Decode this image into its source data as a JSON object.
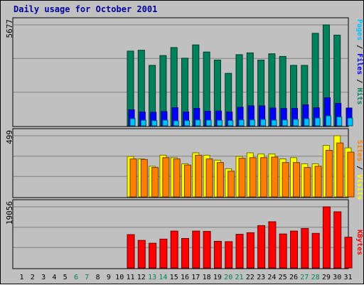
{
  "title": "Daily usage for October 2001",
  "colors": {
    "background": "#c0c0c0",
    "hits": "#00805c",
    "files": "#0000ff",
    "pages": "#00c0ff",
    "visits": "#ffff00",
    "sites": "#ff8000",
    "kbytes": "#ff0000",
    "weekend_label": "#00805c",
    "weekday_label": "#000000"
  },
  "legends": {
    "top": [
      {
        "text": "Pages",
        "color": "#00c0ff"
      },
      {
        "text": " / ",
        "color": "#000000"
      },
      {
        "text": "Files",
        "color": "#0000ff"
      },
      {
        "text": " / ",
        "color": "#000000"
      },
      {
        "text": "Hits",
        "color": "#00805c"
      }
    ],
    "middle": [
      {
        "text": "Sites",
        "color": "#ff8000"
      },
      {
        "text": " / ",
        "color": "#000000"
      },
      {
        "text": "Visits",
        "color": "#ffff00"
      }
    ],
    "bottom": [
      {
        "text": "KBytes",
        "color": "#ff0000"
      }
    ]
  },
  "chart_data": [
    {
      "type": "bar",
      "panel": "hits-files-pages",
      "categories": [
        "1",
        "2",
        "3",
        "4",
        "5",
        "6",
        "7",
        "8",
        "9",
        "10",
        "11",
        "12",
        "13",
        "14",
        "15",
        "16",
        "17",
        "18",
        "19",
        "20",
        "21",
        "22",
        "23",
        "24",
        "25",
        "26",
        "27",
        "28",
        "29",
        "30",
        "31"
      ],
      "weekend_days": [
        "6",
        "7",
        "13",
        "14",
        "20",
        "21",
        "27",
        "28"
      ],
      "ymax_label": "5677",
      "ylim": [
        0,
        5677
      ],
      "grid": true,
      "series": [
        {
          "name": "Hits",
          "values": [
            0,
            0,
            0,
            0,
            0,
            0,
            0,
            0,
            0,
            0,
            4200,
            4250,
            3400,
            3950,
            4400,
            3800,
            4550,
            4150,
            3700,
            2950,
            4000,
            4100,
            3700,
            4050,
            3900,
            3400,
            3400,
            5200,
            5677,
            5100,
            0
          ]
        },
        {
          "name": "Files",
          "values": [
            0,
            0,
            0,
            0,
            0,
            0,
            0,
            0,
            0,
            0,
            900,
            780,
            760,
            800,
            1020,
            780,
            980,
            820,
            830,
            780,
            1040,
            1120,
            1120,
            1000,
            970,
            980,
            1180,
            1010,
            1580,
            1260,
            1000
          ]
        },
        {
          "name": "Pages",
          "values": [
            0,
            0,
            0,
            0,
            0,
            0,
            0,
            0,
            0,
            0,
            400,
            310,
            290,
            320,
            280,
            290,
            330,
            320,
            310,
            300,
            330,
            330,
            360,
            320,
            330,
            360,
            400,
            440,
            560,
            500,
            430
          ]
        }
      ]
    },
    {
      "type": "bar",
      "panel": "visits-sites",
      "categories": [
        "1",
        "2",
        "3",
        "4",
        "5",
        "6",
        "7",
        "8",
        "9",
        "10",
        "11",
        "12",
        "13",
        "14",
        "15",
        "16",
        "17",
        "18",
        "19",
        "20",
        "21",
        "22",
        "23",
        "24",
        "25",
        "26",
        "27",
        "28",
        "29",
        "30",
        "31"
      ],
      "ymax_label": "499",
      "ylim": [
        0,
        499
      ],
      "grid": true,
      "series": [
        {
          "name": "Visits",
          "values": [
            0,
            0,
            0,
            0,
            0,
            0,
            0,
            0,
            0,
            0,
            330,
            310,
            250,
            340,
            320,
            270,
            360,
            340,
            300,
            230,
            330,
            360,
            350,
            350,
            310,
            320,
            270,
            270,
            420,
            499,
            400
          ]
        },
        {
          "name": "Sites",
          "values": [
            0,
            0,
            0,
            0,
            0,
            0,
            0,
            0,
            0,
            0,
            310,
            305,
            240,
            320,
            310,
            260,
            340,
            310,
            280,
            210,
            315,
            320,
            320,
            325,
            280,
            280,
            240,
            250,
            380,
            440,
            365
          ]
        }
      ]
    },
    {
      "type": "bar",
      "panel": "kbytes",
      "categories": [
        "1",
        "2",
        "3",
        "4",
        "5",
        "6",
        "7",
        "8",
        "9",
        "10",
        "11",
        "12",
        "13",
        "14",
        "15",
        "16",
        "17",
        "18",
        "19",
        "20",
        "21",
        "22",
        "23",
        "24",
        "25",
        "26",
        "27",
        "28",
        "29",
        "30",
        "31"
      ],
      "ymax_label": "19056",
      "ylim": [
        0,
        19056
      ],
      "grid": true,
      "series": [
        {
          "name": "KBytes",
          "values": [
            0,
            0,
            0,
            0,
            0,
            0,
            0,
            0,
            0,
            0,
            10400,
            8600,
            7700,
            9000,
            11500,
            9200,
            11500,
            11400,
            8300,
            8200,
            10500,
            11000,
            13200,
            14400,
            10600,
            11500,
            12300,
            10800,
            19056,
            17500,
            9600
          ]
        }
      ]
    }
  ]
}
